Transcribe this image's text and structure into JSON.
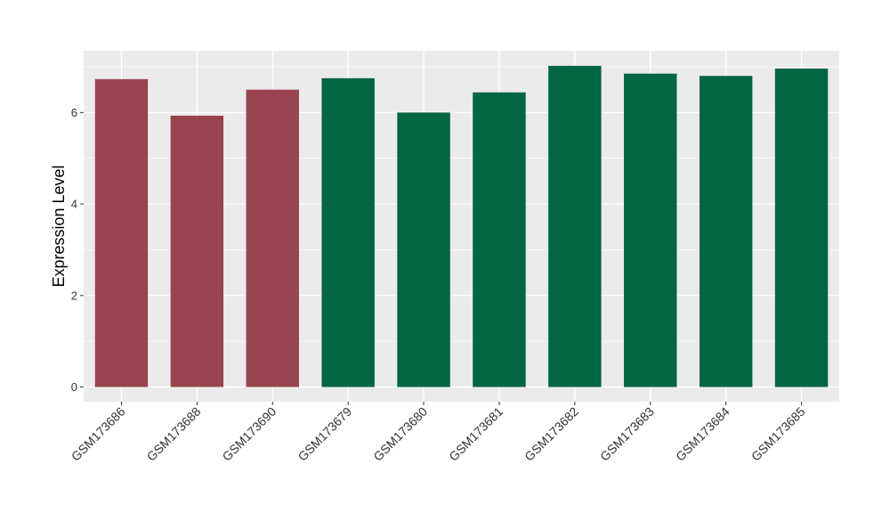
{
  "chart_data": {
    "type": "bar",
    "title": "",
    "xlabel": "",
    "ylabel": "Expression Level",
    "ylim": [
      -0.32,
      7.35
    ],
    "yticks": [
      0,
      2,
      4,
      6
    ],
    "grid": true,
    "categories": [
      "GSM173686",
      "GSM173688",
      "GSM173690",
      "GSM173679",
      "GSM173680",
      "GSM173681",
      "GSM173682",
      "GSM173683",
      "GSM173684",
      "GSM173685"
    ],
    "values": [
      6.73,
      5.93,
      6.5,
      6.75,
      6.0,
      6.44,
      7.02,
      6.85,
      6.8,
      6.96
    ],
    "colors": [
      "#9a4350",
      "#9a4350",
      "#9a4350",
      "#036643",
      "#036643",
      "#036643",
      "#036643",
      "#036643",
      "#036643",
      "#036643"
    ],
    "panel_background": "#ebebeb",
    "grid_color": "#ffffff"
  }
}
